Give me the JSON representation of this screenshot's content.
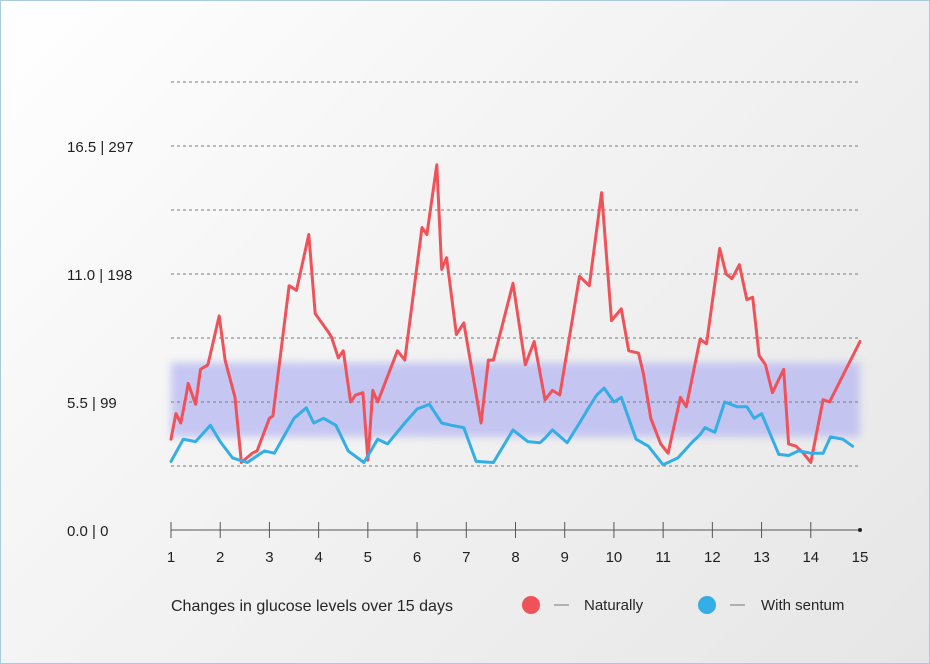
{
  "chart_data": {
    "type": "line",
    "xlabel": "Changes in glucose levels over 15 days",
    "x_range": [
      1,
      15
    ],
    "x_ticks": [
      "1",
      "2",
      "3",
      "4",
      "5",
      "6",
      "7",
      "8",
      "9",
      "10",
      "11",
      "12",
      "13",
      "14",
      "15"
    ],
    "y_range": [
      0,
      22
    ],
    "y_tick_labels": [
      {
        "value": 0,
        "label": "0.0 | 0"
      },
      {
        "value": 5.5,
        "label": "5.5 | 99"
      },
      {
        "value": 11,
        "label": "11.0 | 198"
      },
      {
        "value": 16.5,
        "label": "16.5 | 297"
      }
    ],
    "gridlines": [
      2.75,
      5.5,
      8.25,
      11,
      13.75,
      16.5,
      19.25
    ],
    "target_band": [
      4.0,
      7.2
    ],
    "grid": true,
    "legend_position": "bottom",
    "series": [
      {
        "name": "Naturally",
        "color": "#f0525a",
        "x": [
          1,
          1.1,
          1.2,
          1.3,
          1.35,
          1.5,
          1.6,
          1.75,
          1.98,
          2.1,
          2.3,
          2.43,
          2.65,
          2.75,
          3.0,
          3.07,
          3.4,
          3.55,
          3.8,
          3.93,
          4.2,
          4.26,
          4.4,
          4.5,
          4.65,
          4.75,
          4.9,
          5.0,
          5.1,
          5.2,
          5.6,
          5.75,
          6.1,
          6.2,
          6.4,
          6.5,
          6.6,
          6.8,
          6.95,
          7.3,
          7.45,
          7.55,
          7.95,
          8.2,
          8.38,
          8.6,
          8.75,
          8.9,
          9.3,
          9.5,
          9.75,
          9.95,
          10.15,
          10.3,
          10.5,
          10.6,
          10.75,
          10.95,
          11.1,
          11.35,
          11.47,
          11.75,
          11.88,
          12.15,
          12.28,
          12.4,
          12.55,
          12.7,
          12.82,
          12.95,
          13.08,
          13.22,
          13.45,
          13.55,
          13.7,
          13.85,
          14.0,
          14.25,
          14.38,
          15
        ],
        "y": [
          3.9,
          5.0,
          4.6,
          5.7,
          6.3,
          5.4,
          6.9,
          7.1,
          9.2,
          7.3,
          5.7,
          2.9,
          3.3,
          3.4,
          4.8,
          4.9,
          10.5,
          10.3,
          12.7,
          9.3,
          8.5,
          8.3,
          7.4,
          7.7,
          5.5,
          5.8,
          5.9,
          3.0,
          6.0,
          5.5,
          7.7,
          7.3,
          13.0,
          12.7,
          15.7,
          11.2,
          11.7,
          8.4,
          8.9,
          4.6,
          7.3,
          7.3,
          10.6,
          7.1,
          8.1,
          5.6,
          6.0,
          5.8,
          10.9,
          10.5,
          14.5,
          9.0,
          9.5,
          7.7,
          7.6,
          6.7,
          4.8,
          3.7,
          3.3,
          5.7,
          5.3,
          8.2,
          8.0,
          12.1,
          11.0,
          10.8,
          11.4,
          9.9,
          10.0,
          7.5,
          7.1,
          5.9,
          6.9,
          3.7,
          3.6,
          3.3,
          2.9,
          5.6,
          5.5,
          8.1
        ]
      },
      {
        "name": "With sentum",
        "color": "#33aee6",
        "x": [
          1,
          1.25,
          1.5,
          1.8,
          2.0,
          2.25,
          2.55,
          2.9,
          3.1,
          3.5,
          3.75,
          3.9,
          4.1,
          4.35,
          4.6,
          4.92,
          5.2,
          5.4,
          5.75,
          6.0,
          6.25,
          6.5,
          6.7,
          6.95,
          7.2,
          7.55,
          7.95,
          8.25,
          8.5,
          8.6,
          8.75,
          9.05,
          9.3,
          9.5,
          9.65,
          9.8,
          10.0,
          10.15,
          10.45,
          10.7,
          11.0,
          11.3,
          11.6,
          11.75,
          11.85,
          12.05,
          12.25,
          12.5,
          12.7,
          12.85,
          13.0,
          13.35,
          13.55,
          13.75,
          14.0,
          14.25,
          14.4,
          14.65,
          14.85
        ],
        "y": [
          2.95,
          3.9,
          3.8,
          4.5,
          3.8,
          3.1,
          2.9,
          3.4,
          3.3,
          4.8,
          5.25,
          4.6,
          4.8,
          4.5,
          3.4,
          2.9,
          3.9,
          3.7,
          4.6,
          5.2,
          5.4,
          4.6,
          4.5,
          4.4,
          2.95,
          2.9,
          4.3,
          3.8,
          3.75,
          3.95,
          4.3,
          3.75,
          4.6,
          5.3,
          5.8,
          6.1,
          5.5,
          5.7,
          3.9,
          3.6,
          2.8,
          3.1,
          3.8,
          4.1,
          4.4,
          4.2,
          5.5,
          5.3,
          5.3,
          4.8,
          5.0,
          3.25,
          3.2,
          3.4,
          3.3,
          3.3,
          4.0,
          3.9,
          3.6
        ]
      }
    ]
  }
}
